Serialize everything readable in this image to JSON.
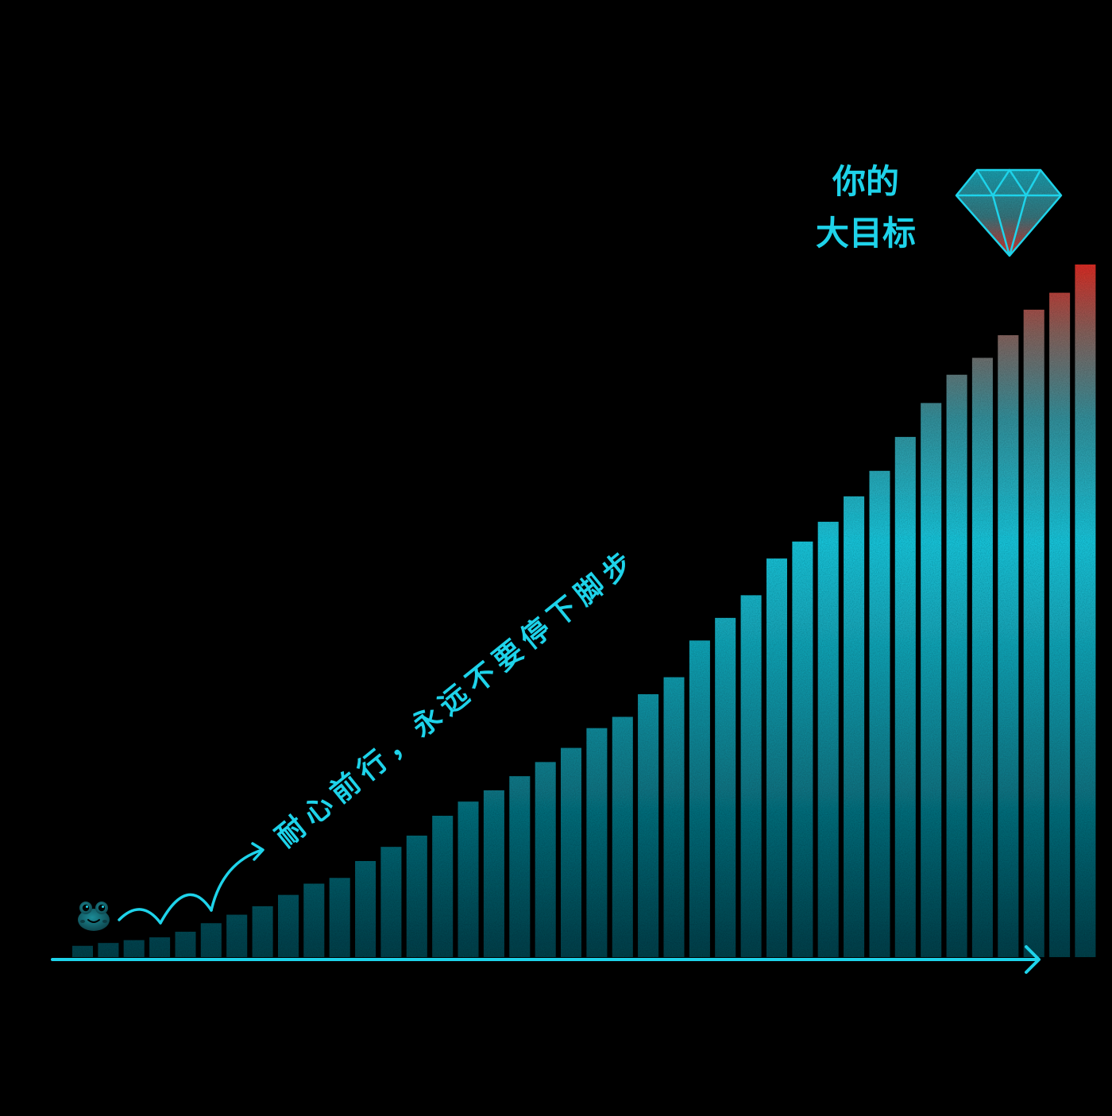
{
  "poster": {
    "goal_line1": "你的",
    "goal_line2": "大目标",
    "slogan": "耐心前行，永远不要停下脚步",
    "accent_color": "#1ED3EA",
    "top_color": "#E8332B",
    "background": "#000000",
    "icons": [
      "frog-icon",
      "diamond-icon",
      "hop-arrow",
      "axis-arrow"
    ]
  },
  "chart_data": {
    "type": "bar",
    "series": [
      {
        "values": [
          2,
          2.5,
          3,
          3.5,
          4.5,
          6,
          7.5,
          9,
          11,
          13,
          14,
          17,
          19.5,
          21.5,
          25,
          27.5,
          29.5,
          32,
          34.5,
          37,
          40.5,
          42.5,
          46.5,
          49.5,
          56,
          60,
          64,
          70.5,
          73.5,
          77,
          81.5,
          86,
          92,
          98,
          103,
          106,
          110,
          114.5,
          117.5,
          122.5
        ]
      }
    ]
  }
}
